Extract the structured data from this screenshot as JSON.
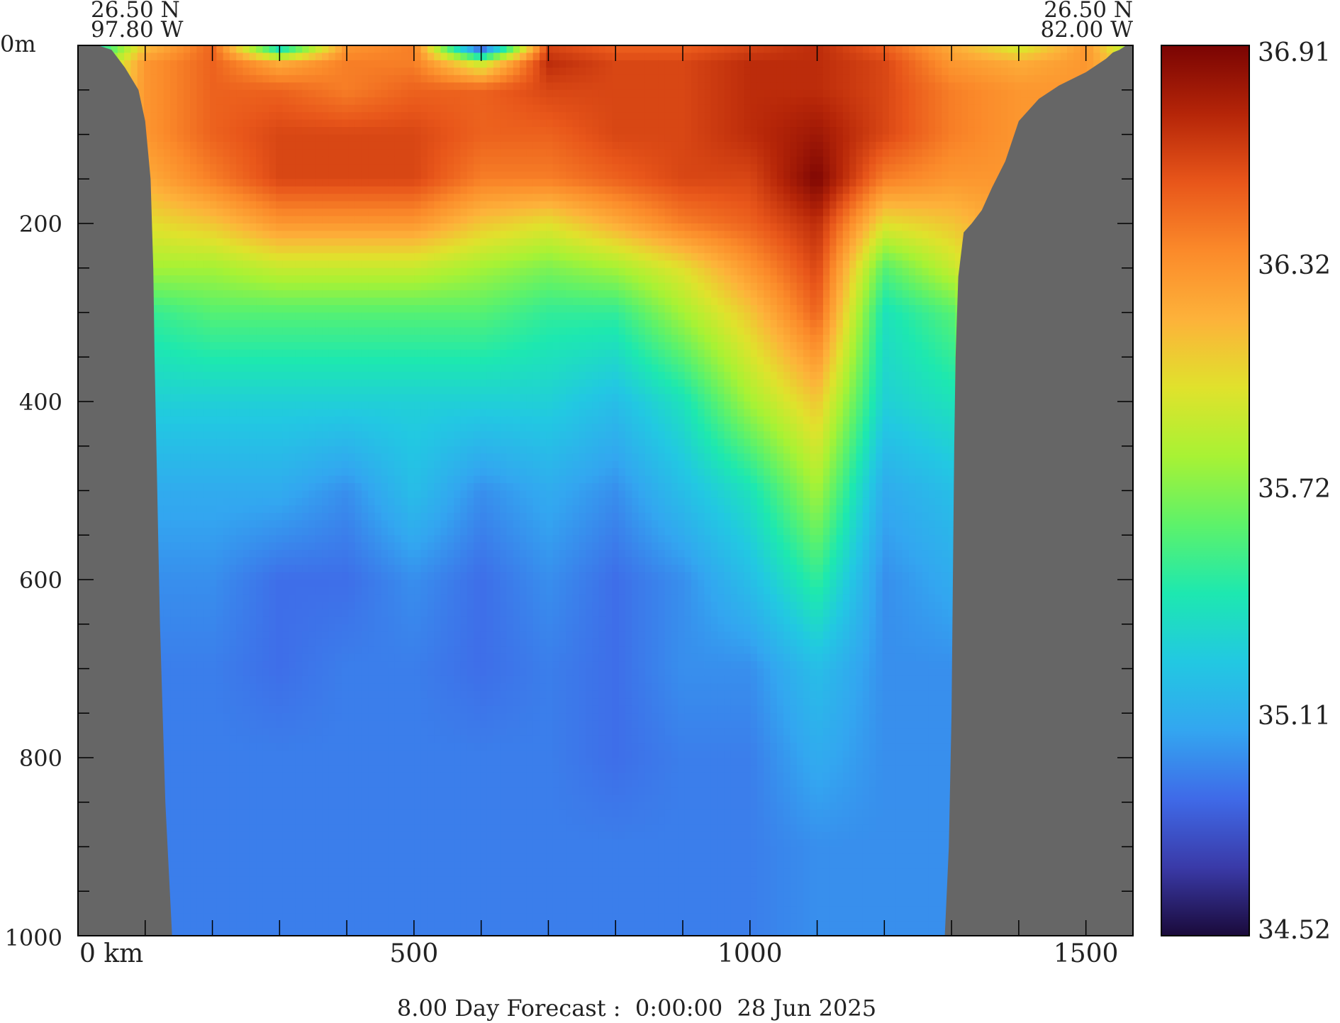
{
  "chart_data": {
    "type": "heatmap",
    "title": "",
    "endpoints": {
      "left": {
        "lat": "26.50 N",
        "lon": "97.80 W"
      },
      "right": {
        "lat": "26.50 N",
        "lon": "82.00 W"
      }
    },
    "x_axis": {
      "label": "km",
      "range": [
        0,
        1570
      ],
      "major_ticks": [
        0,
        500,
        1000,
        1500
      ],
      "minor_tick_step": 100,
      "tick_labels": [
        "0 km",
        "500",
        "1000",
        "1500"
      ]
    },
    "y_axis": {
      "label": "m",
      "range": [
        0,
        1000
      ],
      "inverted": true,
      "major_ticks": [
        0,
        200,
        400,
        600,
        800,
        1000
      ],
      "minor_tick_step": 50,
      "tick_labels": [
        "0m",
        "200",
        "400",
        "600",
        "800",
        "1000"
      ]
    },
    "colorbar": {
      "min": 34.52,
      "max": 36.91,
      "tick_labels": [
        "36.91",
        "36.32",
        "35.72",
        "35.11",
        "34.52"
      ],
      "colormap": [
        "#1a0a3a",
        "#3a3aa8",
        "#3f6ae8",
        "#33a6f0",
        "#22c8e2",
        "#1de8b0",
        "#5df26a",
        "#a8f234",
        "#e0e22c",
        "#fdb23a",
        "#fb8a2a",
        "#e8561a",
        "#b52508",
        "#7a0403"
      ]
    },
    "land_color": "#666666",
    "shallow_color": "#a9cdf2",
    "seafloor_depth_m": {
      "x_km": [
        0,
        30,
        50,
        70,
        90,
        100,
        108,
        112,
        114,
        118,
        122,
        130,
        140,
        150,
        200,
        600,
        1000,
        1280,
        1290,
        1296,
        1300,
        1302,
        1304,
        1306,
        1310,
        1318,
        1330,
        1345,
        1360,
        1380,
        1400,
        1430,
        1460,
        1500,
        1530,
        1540,
        1550,
        1560,
        1570
      ],
      "depth": [
        0,
        0,
        5,
        25,
        50,
        85,
        150,
        250,
        350,
        500,
        650,
        850,
        1000,
        1000,
        1000,
        1000,
        1000,
        1000,
        1000,
        900,
        750,
        600,
        450,
        350,
        260,
        210,
        200,
        185,
        160,
        130,
        85,
        60,
        45,
        30,
        15,
        8,
        5,
        0,
        0
      ]
    },
    "salinity_field": {
      "x_km": [
        0,
        100,
        200,
        300,
        400,
        500,
        600,
        700,
        800,
        900,
        1000,
        1100,
        1200,
        1300,
        1400,
        1500,
        1570
      ],
      "depth_m": [
        0,
        20,
        50,
        100,
        150,
        200,
        250,
        300,
        400,
        500,
        600,
        700,
        800,
        900,
        1000
      ],
      "values": [
        [
          35.0,
          36.1,
          36.5,
          35.2,
          36.3,
          36.4,
          34.6,
          36.6,
          36.5,
          36.5,
          36.6,
          36.7,
          36.5,
          36.2,
          35.9,
          36.3,
          35.7
        ],
        [
          35.4,
          36.3,
          36.5,
          36.2,
          36.4,
          36.4,
          35.9,
          36.7,
          36.6,
          36.6,
          36.7,
          36.7,
          36.6,
          36.3,
          36.2,
          36.3,
          36.0
        ],
        [
          35.6,
          36.3,
          36.5,
          36.5,
          36.4,
          36.5,
          36.5,
          36.6,
          36.6,
          36.6,
          36.7,
          36.7,
          36.6,
          36.4,
          36.3,
          36.3,
          36.1
        ],
        [
          35.6,
          36.3,
          36.5,
          36.6,
          36.6,
          36.6,
          36.5,
          36.5,
          36.6,
          36.6,
          36.7,
          36.8,
          36.6,
          36.4,
          36.3,
          36.3,
          36.1
        ],
        [
          35.6,
          36.2,
          36.4,
          36.6,
          36.6,
          36.6,
          36.4,
          36.4,
          36.5,
          36.6,
          36.6,
          36.9,
          36.4,
          36.3,
          36.3,
          36.3,
          36.1
        ],
        [
          35.6,
          36.0,
          36.1,
          36.3,
          36.3,
          36.3,
          36.1,
          36.0,
          36.2,
          36.4,
          36.5,
          36.7,
          36.0,
          36.1,
          36.3,
          36.3,
          36.1
        ],
        [
          35.5,
          35.8,
          35.8,
          35.9,
          35.9,
          35.9,
          35.8,
          35.7,
          35.8,
          36.0,
          36.3,
          36.6,
          35.6,
          35.9,
          36.3,
          36.3,
          36.1
        ],
        [
          35.4,
          35.5,
          35.6,
          35.6,
          35.6,
          35.6,
          35.6,
          35.5,
          35.5,
          35.8,
          36.1,
          36.5,
          35.4,
          35.6,
          36.3,
          36.3,
          36.1
        ],
        [
          35.2,
          35.3,
          35.3,
          35.3,
          35.3,
          35.3,
          35.3,
          35.3,
          35.2,
          35.4,
          35.8,
          36.1,
          35.3,
          35.4,
          36.3,
          36.3,
          36.1
        ],
        [
          35.1,
          35.1,
          35.1,
          35.1,
          35.0,
          35.2,
          35.0,
          35.1,
          35.0,
          35.2,
          35.4,
          35.8,
          35.1,
          35.2,
          36.3,
          36.3,
          36.1
        ],
        [
          35.0,
          35.0,
          35.0,
          34.9,
          34.9,
          35.0,
          34.9,
          35.0,
          34.9,
          35.0,
          35.2,
          35.5,
          35.0,
          35.1,
          36.3,
          36.3,
          36.1
        ],
        [
          35.0,
          34.95,
          34.95,
          34.9,
          34.95,
          34.95,
          34.9,
          34.95,
          34.9,
          35.0,
          35.0,
          35.2,
          35.0,
          35.0,
          36.3,
          36.3,
          36.1
        ],
        [
          35.0,
          34.95,
          34.95,
          34.95,
          34.95,
          34.95,
          34.95,
          34.95,
          34.9,
          34.95,
          34.95,
          35.1,
          35.0,
          35.0,
          36.3,
          36.3,
          36.1
        ],
        [
          35.0,
          34.95,
          34.95,
          34.95,
          34.95,
          34.95,
          34.95,
          34.95,
          34.95,
          34.95,
          34.95,
          35.0,
          35.0,
          35.0,
          36.3,
          36.3,
          36.1
        ],
        [
          35.0,
          34.95,
          34.95,
          34.95,
          34.95,
          34.95,
          34.95,
          34.95,
          34.95,
          34.95,
          34.95,
          35.0,
          35.0,
          35.0,
          36.3,
          36.3,
          36.1
        ]
      ]
    },
    "footer": "8.00 Day Forecast :  0:00:00  28 Jun 2025"
  }
}
